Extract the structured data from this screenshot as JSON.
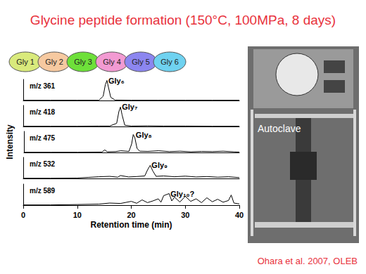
{
  "title": "Glycine peptide formation (150°C, 100MPa, 8 days)",
  "diagram": {
    "nodes": [
      {
        "label": "Gly 1",
        "color": "#d9ea7c"
      },
      {
        "label": "Gly 2",
        "color": "#f6c9a0"
      },
      {
        "label": "Gly 3",
        "color": "#6ee03a"
      },
      {
        "label": "Gly 4",
        "color": "#f29ad2"
      },
      {
        "label": "Gly 5",
        "color": "#8c86f0"
      },
      {
        "label": "Gly 6",
        "color": "#6fd2f0"
      }
    ]
  },
  "photo": {
    "label": "Autoclave"
  },
  "citation": "Ohara et al. 2007, OLEB",
  "chart_data": [
    {
      "type": "line",
      "color": "#000000",
      "xlim": [
        0,
        40
      ],
      "ylim": [
        0,
        100
      ],
      "grid": false,
      "tick_labels": false,
      "annotations": [
        {
          "text": "m/z 361"
        },
        {
          "text": "Gly₆",
          "x": 15.5,
          "y": 95
        }
      ],
      "x": [
        0,
        5,
        10,
        14,
        14.8,
        15.2,
        15.5,
        15.8,
        16.2,
        17,
        20,
        25,
        30,
        35,
        40
      ],
      "values": [
        1,
        1,
        1,
        1,
        20,
        75,
        95,
        60,
        15,
        2,
        1,
        1,
        1,
        1,
        1
      ]
    },
    {
      "type": "line",
      "color": "#000000",
      "xlim": [
        0,
        40
      ],
      "ylim": [
        0,
        100
      ],
      "grid": false,
      "tick_labels": false,
      "annotations": [
        {
          "text": "m/z 418"
        },
        {
          "text": "Gly₇",
          "x": 18,
          "y": 92
        }
      ],
      "x": [
        0,
        5,
        10,
        14,
        16,
        17.3,
        17.7,
        18,
        18.3,
        18.8,
        20,
        23,
        26,
        30,
        35,
        40
      ],
      "values": [
        1,
        1,
        1,
        2,
        2,
        15,
        70,
        92,
        55,
        6,
        2,
        3,
        2,
        2,
        1,
        1
      ]
    },
    {
      "type": "line",
      "color": "#000000",
      "xlim": [
        0,
        40
      ],
      "ylim": [
        0,
        100
      ],
      "grid": false,
      "tick_labels": false,
      "ylabel": "Intensity",
      "annotations": [
        {
          "text": "m/z 475"
        },
        {
          "text": "Gly₈",
          "x": 20.5,
          "y": 85
        }
      ],
      "x": [
        0,
        5,
        10,
        14.5,
        15,
        15.5,
        17,
        18,
        19.5,
        20,
        20.3,
        20.6,
        21,
        21.5,
        23,
        25,
        27,
        29,
        31,
        33,
        35,
        37,
        39,
        40
      ],
      "values": [
        1,
        1,
        1,
        2,
        12,
        3,
        4,
        8,
        5,
        40,
        85,
        70,
        20,
        6,
        5,
        8,
        4,
        6,
        3,
        5,
        4,
        6,
        3,
        2
      ]
    },
    {
      "type": "line",
      "color": "#000000",
      "xlim": [
        0,
        40
      ],
      "ylim": [
        0,
        100
      ],
      "grid": false,
      "tick_labels": false,
      "annotations": [
        {
          "text": "m/z 532"
        },
        {
          "text": "Gly₉",
          "x": 23.5,
          "y": 62
        }
      ],
      "x": [
        0,
        5,
        10,
        12,
        14,
        16,
        17.5,
        18,
        19.5,
        21,
        22.5,
        23,
        23.5,
        24,
        24.6,
        26,
        28,
        30,
        32,
        34,
        36,
        38,
        40
      ],
      "values": [
        1,
        1,
        2,
        5,
        8,
        10,
        6,
        14,
        7,
        9,
        12,
        40,
        62,
        35,
        10,
        12,
        8,
        11,
        7,
        9,
        6,
        8,
        4
      ]
    },
    {
      "type": "line",
      "color": "#000000",
      "xlim": [
        0,
        40
      ],
      "ylim": [
        0,
        100
      ],
      "grid": false,
      "tick_labels": "x",
      "xticks": [
        0,
        10,
        20,
        30,
        40
      ],
      "xlabel": "Retention time (min)",
      "annotations": [
        {
          "text": "m/z 589"
        },
        {
          "text": "Gly₁₀?",
          "x": 27,
          "y": 55
        }
      ],
      "x": [
        0,
        5,
        10,
        14,
        16,
        18,
        20,
        21,
        22,
        23,
        24,
        25,
        25.5,
        26,
        27,
        27.5,
        28,
        29,
        30,
        31,
        32,
        33,
        34,
        35,
        36,
        37,
        38,
        38.5,
        39,
        40
      ],
      "values": [
        1,
        1,
        3,
        5,
        10,
        8,
        18,
        9,
        25,
        12,
        20,
        30,
        14,
        45,
        55,
        20,
        38,
        15,
        42,
        18,
        30,
        12,
        35,
        16,
        28,
        14,
        22,
        48,
        10,
        6
      ]
    }
  ]
}
